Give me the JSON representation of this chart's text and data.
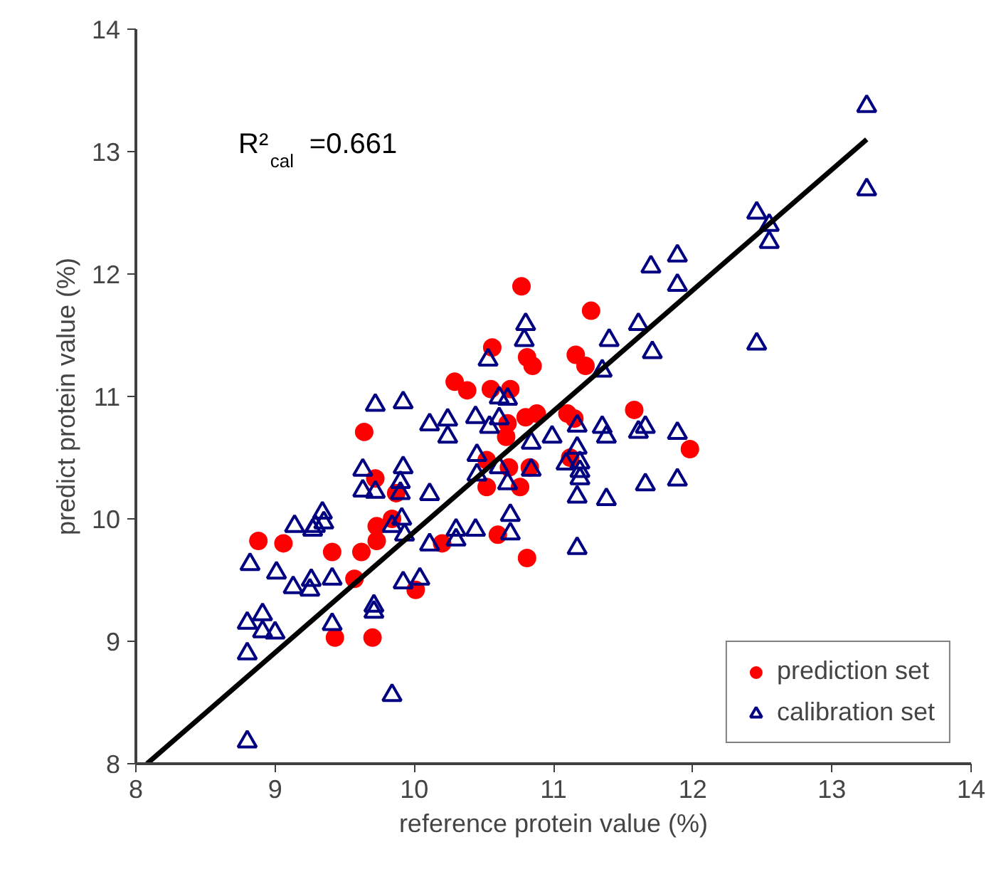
{
  "chart_data": {
    "type": "scatter",
    "xlabel": "reference protein value (%)",
    "ylabel": "predict protein value (%)",
    "xlim": [
      8,
      14
    ],
    "ylim": [
      8,
      14
    ],
    "xticks": [
      8,
      9,
      10,
      11,
      12,
      13,
      14
    ],
    "yticks": [
      8,
      9,
      10,
      11,
      12,
      13,
      14
    ],
    "grid": false,
    "legend": "bottom right",
    "annotations": [
      "R²$_{cal}$ =0.661"
    ],
    "series": [
      {
        "name": "prediction set",
        "marker": "circle",
        "color": "#ff0000",
        "x": [
          8.88,
          9.06,
          9.41,
          9.43,
          9.57,
          9.62,
          9.64,
          9.72,
          9.73,
          9.73,
          9.7,
          9.87,
          9.84,
          10.01,
          10.2,
          10.77,
          11.27,
          10.56,
          10.81,
          10.85,
          11.16,
          11.23,
          10.29,
          10.38,
          10.55,
          10.69,
          10.8,
          10.88,
          11.1,
          11.15,
          11.58,
          11.98,
          10.66,
          10.67,
          10.52,
          10.68,
          10.83,
          11.12,
          10.52,
          10.76,
          10.6,
          10.81
        ],
        "values": [
          9.82,
          9.8,
          9.73,
          9.03,
          9.51,
          9.73,
          10.71,
          10.33,
          9.94,
          9.82,
          9.03,
          10.21,
          10.0,
          9.42,
          9.8,
          11.9,
          11.7,
          11.4,
          11.32,
          11.25,
          11.34,
          11.25,
          11.12,
          11.05,
          11.06,
          11.06,
          10.83,
          10.86,
          10.86,
          10.82,
          10.89,
          10.57,
          10.67,
          10.78,
          10.48,
          10.42,
          10.42,
          10.5,
          10.26,
          10.26,
          9.87,
          9.68
        ]
      },
      {
        "name": "calibration set",
        "marker": "triangle",
        "color": "#000080",
        "x": [
          8.8,
          8.8,
          8.8,
          8.91,
          8.91,
          9.0,
          8.82,
          9.01,
          9.13,
          9.25,
          9.26,
          9.41,
          9.41,
          9.14,
          9.27,
          9.29,
          9.34,
          9.35,
          9.63,
          9.63,
          9.72,
          9.72,
          9.92,
          9.92,
          9.9,
          9.9,
          9.84,
          9.91,
          9.93,
          10.11,
          9.92,
          10.04,
          9.71,
          9.71,
          9.84,
          10.11,
          10.11,
          10.24,
          10.24,
          10.44,
          10.54,
          10.61,
          10.67,
          10.61,
          10.45,
          10.45,
          10.61,
          10.67,
          10.84,
          10.84,
          10.99,
          11.09,
          11.17,
          11.17,
          11.19,
          11.19,
          11.19,
          11.17,
          11.38,
          11.35,
          11.38,
          11.61,
          11.66,
          11.89,
          11.66,
          11.89,
          10.3,
          10.3,
          10.44,
          10.69,
          10.69,
          11.17,
          10.8,
          10.79,
          10.53,
          11.4,
          11.35,
          11.61,
          11.71,
          11.7,
          11.89,
          11.89,
          13.25,
          13.25,
          12.46,
          12.55,
          12.55,
          12.46
        ],
        "values": [
          8.18,
          8.9,
          9.15,
          9.22,
          9.08,
          9.07,
          9.63,
          9.56,
          9.44,
          9.42,
          9.5,
          9.51,
          9.14,
          9.94,
          9.91,
          9.94,
          10.05,
          9.97,
          10.4,
          10.23,
          10.22,
          10.93,
          10.95,
          10.42,
          10.3,
          10.21,
          9.94,
          10.0,
          9.87,
          9.79,
          9.48,
          9.51,
          9.29,
          9.24,
          8.56,
          10.77,
          10.2,
          10.81,
          10.67,
          10.83,
          10.75,
          10.99,
          10.98,
          10.82,
          10.52,
          10.36,
          10.42,
          10.29,
          10.62,
          10.4,
          10.67,
          10.45,
          10.76,
          10.58,
          10.46,
          10.39,
          10.33,
          10.18,
          10.16,
          10.75,
          10.67,
          10.71,
          10.75,
          10.7,
          10.28,
          10.32,
          9.91,
          9.83,
          9.91,
          10.03,
          9.88,
          9.76,
          11.59,
          11.46,
          11.3,
          11.46,
          11.21,
          11.59,
          11.36,
          12.06,
          12.15,
          11.91,
          13.37,
          12.69,
          12.5,
          12.4,
          12.26,
          11.43
        ]
      },
      {
        "type": "line",
        "color": "#000000",
        "x": [
          8.08,
          13.25
        ],
        "values": [
          8.0,
          13.1
        ]
      }
    ]
  }
}
